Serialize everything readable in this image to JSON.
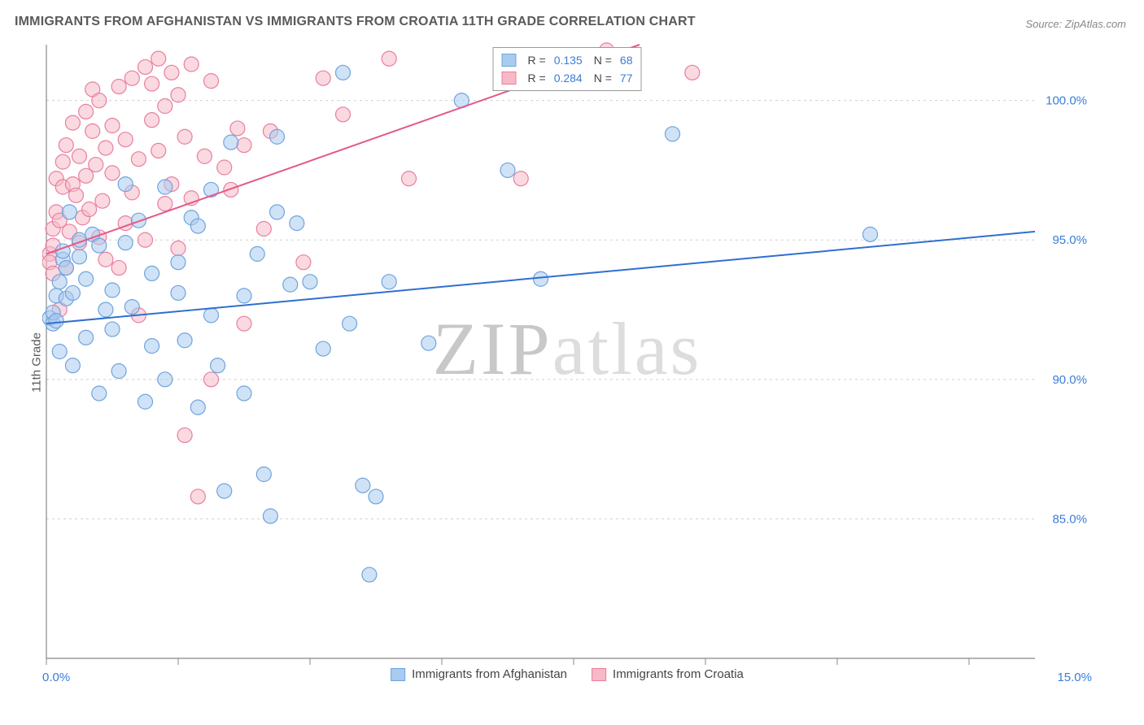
{
  "title": "IMMIGRANTS FROM AFGHANISTAN VS IMMIGRANTS FROM CROATIA 11TH GRADE CORRELATION CHART",
  "source": "Source: ZipAtlas.com",
  "watermark_a": "ZIP",
  "watermark_b": "atlas",
  "y_axis_label": "11th Grade",
  "chart": {
    "type": "scatter",
    "xlim": [
      0,
      15
    ],
    "ylim": [
      80,
      102
    ],
    "x_ticks": [
      0,
      2,
      4,
      6,
      8,
      10,
      12,
      14
    ],
    "x_tick_labels": {
      "0": "0.0%",
      "15": "15.0%"
    },
    "y_ticks": [
      85,
      90,
      95,
      100
    ],
    "y_tick_labels": {
      "85": "85.0%",
      "90": "90.0%",
      "95": "95.0%",
      "100": "100.0%"
    },
    "grid_color": "#d0d0d0",
    "axis_color": "#888888",
    "background_color": "#ffffff",
    "marker_radius": 9,
    "marker_stroke_width": 1.2,
    "trend_line_width": 2,
    "series": [
      {
        "name": "Immigrants from Afghanistan",
        "fill": "#a9cbef",
        "stroke": "#6fa4de",
        "fill_opacity": 0.55,
        "trend_color": "#2f6fd0",
        "trend": {
          "x1": 0,
          "y1": 92.0,
          "x2": 15,
          "y2": 95.3
        },
        "R": "0.135",
        "N": "68",
        "points": [
          [
            0.05,
            92.2
          ],
          [
            0.1,
            92.0
          ],
          [
            0.1,
            92.4
          ],
          [
            0.15,
            92.1
          ],
          [
            0.15,
            93.0
          ],
          [
            0.2,
            91.0
          ],
          [
            0.2,
            93.5
          ],
          [
            0.25,
            94.3
          ],
          [
            0.25,
            94.6
          ],
          [
            0.3,
            94.0
          ],
          [
            0.3,
            92.9
          ],
          [
            0.35,
            96.0
          ],
          [
            0.4,
            90.5
          ],
          [
            0.4,
            93.1
          ],
          [
            0.5,
            94.4
          ],
          [
            0.5,
            95.0
          ],
          [
            0.6,
            93.6
          ],
          [
            0.6,
            91.5
          ],
          [
            0.7,
            95.2
          ],
          [
            0.8,
            94.8
          ],
          [
            0.8,
            89.5
          ],
          [
            0.9,
            92.5
          ],
          [
            1.0,
            93.2
          ],
          [
            1.0,
            91.8
          ],
          [
            1.1,
            90.3
          ],
          [
            1.2,
            94.9
          ],
          [
            1.2,
            97.0
          ],
          [
            1.3,
            92.6
          ],
          [
            1.4,
            95.7
          ],
          [
            1.5,
            89.2
          ],
          [
            1.6,
            93.8
          ],
          [
            1.6,
            91.2
          ],
          [
            1.8,
            90.0
          ],
          [
            1.8,
            96.9
          ],
          [
            2.0,
            94.2
          ],
          [
            2.0,
            93.1
          ],
          [
            2.1,
            91.4
          ],
          [
            2.2,
            95.8
          ],
          [
            2.3,
            89.0
          ],
          [
            2.3,
            95.5
          ],
          [
            2.5,
            96.8
          ],
          [
            2.5,
            92.3
          ],
          [
            2.6,
            90.5
          ],
          [
            2.7,
            86.0
          ],
          [
            2.8,
            98.5
          ],
          [
            3.0,
            89.5
          ],
          [
            3.0,
            93.0
          ],
          [
            3.2,
            94.5
          ],
          [
            3.3,
            86.6
          ],
          [
            3.4,
            85.1
          ],
          [
            3.5,
            98.7
          ],
          [
            3.5,
            96.0
          ],
          [
            3.7,
            93.4
          ],
          [
            3.8,
            95.6
          ],
          [
            4.0,
            93.5
          ],
          [
            4.2,
            91.1
          ],
          [
            4.5,
            101.0
          ],
          [
            4.6,
            92.0
          ],
          [
            4.8,
            86.2
          ],
          [
            4.9,
            83.0
          ],
          [
            5.0,
            85.8
          ],
          [
            5.2,
            93.5
          ],
          [
            5.8,
            91.3
          ],
          [
            6.3,
            100.0
          ],
          [
            7.0,
            97.5
          ],
          [
            7.5,
            93.6
          ],
          [
            9.5,
            98.8
          ],
          [
            12.5,
            95.2
          ]
        ]
      },
      {
        "name": "Immigrants from Croatia",
        "fill": "#f6b9c6",
        "stroke": "#e97fa0",
        "fill_opacity": 0.55,
        "trend_color": "#e45a87",
        "trend": {
          "x1": 0,
          "y1": 94.5,
          "x2": 9.0,
          "y2": 102.0
        },
        "R": "0.284",
        "N": "77",
        "points": [
          [
            0.05,
            94.5
          ],
          [
            0.05,
            94.2
          ],
          [
            0.1,
            94.8
          ],
          [
            0.1,
            95.4
          ],
          [
            0.1,
            93.8
          ],
          [
            0.15,
            96.0
          ],
          [
            0.15,
            97.2
          ],
          [
            0.2,
            95.7
          ],
          [
            0.2,
            92.5
          ],
          [
            0.25,
            96.9
          ],
          [
            0.25,
            97.8
          ],
          [
            0.3,
            94.0
          ],
          [
            0.3,
            98.4
          ],
          [
            0.35,
            95.3
          ],
          [
            0.4,
            97.0
          ],
          [
            0.4,
            99.2
          ],
          [
            0.45,
            96.6
          ],
          [
            0.5,
            98.0
          ],
          [
            0.5,
            94.9
          ],
          [
            0.55,
            95.8
          ],
          [
            0.6,
            97.3
          ],
          [
            0.6,
            99.6
          ],
          [
            0.65,
            96.1
          ],
          [
            0.7,
            98.9
          ],
          [
            0.7,
            100.4
          ],
          [
            0.75,
            97.7
          ],
          [
            0.8,
            95.1
          ],
          [
            0.8,
            100.0
          ],
          [
            0.85,
            96.4
          ],
          [
            0.9,
            98.3
          ],
          [
            0.9,
            94.3
          ],
          [
            1.0,
            99.1
          ],
          [
            1.0,
            97.4
          ],
          [
            1.1,
            94.0
          ],
          [
            1.1,
            100.5
          ],
          [
            1.2,
            95.6
          ],
          [
            1.2,
            98.6
          ],
          [
            1.3,
            96.7
          ],
          [
            1.3,
            100.8
          ],
          [
            1.4,
            92.3
          ],
          [
            1.4,
            97.9
          ],
          [
            1.5,
            101.2
          ],
          [
            1.5,
            95.0
          ],
          [
            1.6,
            99.3
          ],
          [
            1.6,
            100.6
          ],
          [
            1.7,
            98.2
          ],
          [
            1.7,
            101.5
          ],
          [
            1.8,
            96.3
          ],
          [
            1.8,
            99.8
          ],
          [
            1.9,
            101.0
          ],
          [
            1.9,
            97.0
          ],
          [
            2.0,
            100.2
          ],
          [
            2.0,
            94.7
          ],
          [
            2.1,
            88.0
          ],
          [
            2.1,
            98.7
          ],
          [
            2.2,
            101.3
          ],
          [
            2.2,
            96.5
          ],
          [
            2.3,
            85.8
          ],
          [
            2.4,
            98.0
          ],
          [
            2.5,
            100.7
          ],
          [
            2.5,
            90.0
          ],
          [
            2.7,
            97.6
          ],
          [
            2.8,
            96.8
          ],
          [
            2.9,
            99.0
          ],
          [
            3.0,
            98.4
          ],
          [
            3.0,
            92.0
          ],
          [
            3.3,
            95.4
          ],
          [
            3.4,
            98.9
          ],
          [
            3.9,
            94.2
          ],
          [
            4.2,
            100.8
          ],
          [
            4.5,
            99.5
          ],
          [
            5.2,
            101.5
          ],
          [
            5.5,
            97.2
          ],
          [
            7.0,
            101.0
          ],
          [
            7.2,
            97.2
          ],
          [
            8.5,
            101.8
          ],
          [
            9.8,
            101.0
          ]
        ]
      }
    ]
  },
  "legend_top": {
    "r_label": "R =",
    "n_label": "N ="
  }
}
